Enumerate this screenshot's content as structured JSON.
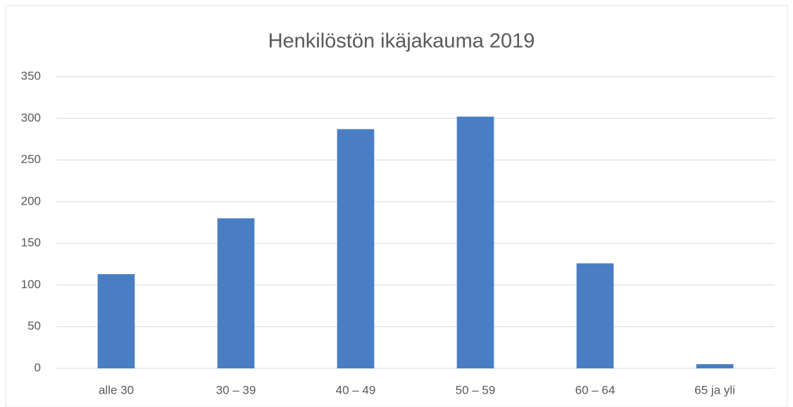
{
  "chart_data": {
    "type": "bar",
    "title": "Henkilöstön ikäjakauma 2019",
    "categories": [
      "alle 30",
      "30 – 39",
      "40 – 49",
      "50 – 59",
      "60 – 64",
      "65 ja yli"
    ],
    "values": [
      113,
      180,
      287,
      302,
      126,
      5
    ],
    "color": "#4a7ec4",
    "ylim": [
      0,
      350
    ],
    "yticks": [
      0,
      50,
      100,
      150,
      200,
      250,
      300,
      350
    ],
    "grid": true
  }
}
